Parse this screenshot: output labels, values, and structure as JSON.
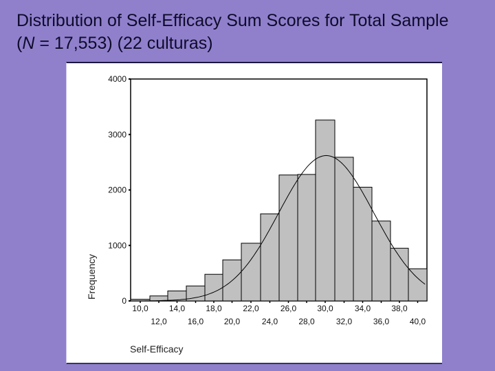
{
  "slide": {
    "title_line1": "Distribution of Self-Efficacy Sum Scores for Total Sample",
    "title_line2_prefix": "(",
    "title_line2_italic": "N",
    "title_line2_rest": " = 17,553) (22 culturas)",
    "background_color": "#9080cc"
  },
  "chart_data": {
    "type": "bar",
    "title": "Distribution of Self-Efficacy Sum Scores for Total Sample (N = 17,553) (22 culturas)",
    "xlabel": "Self-Efficacy",
    "ylabel": "Frequency",
    "ylim": [
      0,
      4000
    ],
    "yticks": [
      "0",
      "1000",
      "2000",
      "3000",
      "4000"
    ],
    "xticks_upper": [
      "10,0",
      "14,0",
      "18,0",
      "22,0",
      "26,0",
      "30,0",
      "34,0",
      "38,0"
    ],
    "xticks_lower": [
      "12,0",
      "16,0",
      "20,0",
      "24,0",
      "28,0",
      "32,0",
      "36,0",
      "40,0"
    ],
    "categories": [
      "10",
      "12",
      "14",
      "16",
      "18",
      "20",
      "22",
      "24",
      "26",
      "28",
      "30",
      "32",
      "34",
      "36",
      "38",
      "40"
    ],
    "values": [
      30,
      90,
      180,
      270,
      480,
      740,
      1040,
      1570,
      2270,
      2280,
      3260,
      2590,
      2050,
      1440,
      950,
      580
    ],
    "normal_curve": {
      "shown": true,
      "peak_x": 29.8,
      "peak_y": 2620
    },
    "bar_color": "#c0c0c0",
    "grid": false,
    "legend": "none"
  }
}
